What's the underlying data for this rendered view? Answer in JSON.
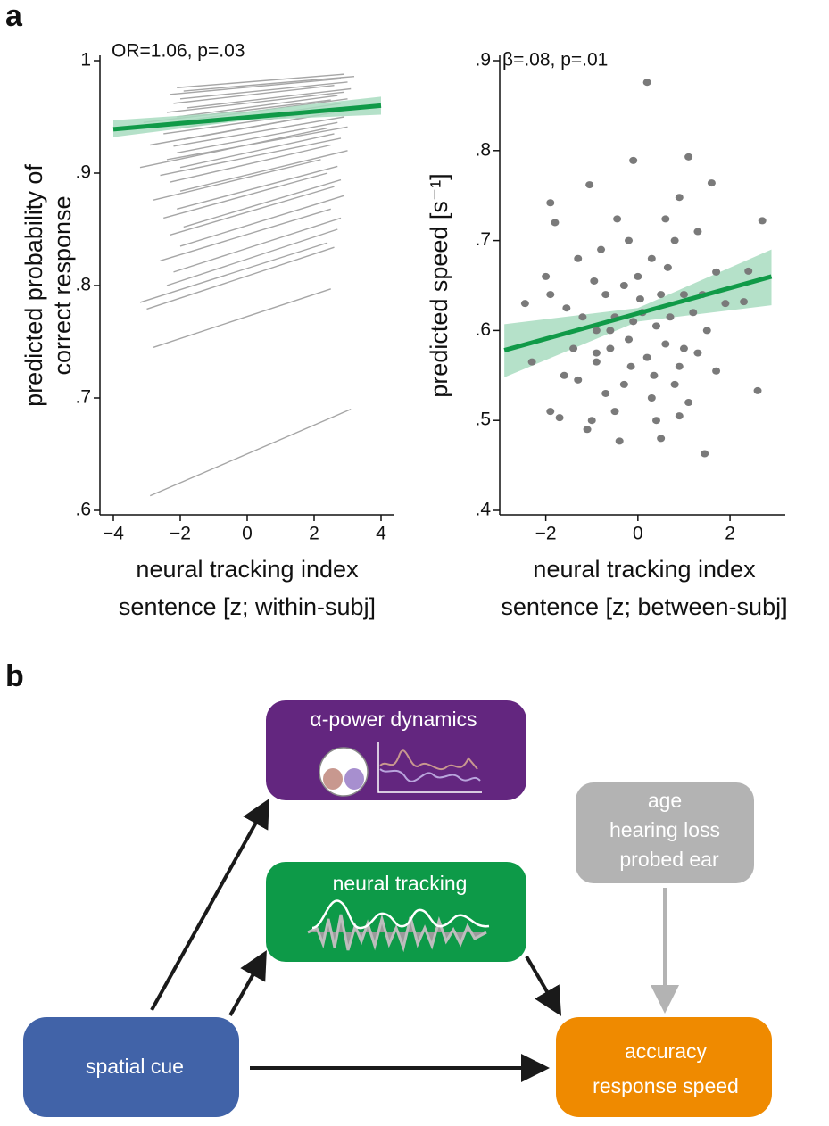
{
  "panel_labels": [
    "a",
    "b"
  ],
  "chart_data": [
    {
      "type": "line",
      "annotation": "OR=1.06, p=.03",
      "ylabel": [
        "predicted probability of",
        "correct response"
      ],
      "xlabel": [
        "neural tracking index",
        "sentence [z; within-subj]"
      ],
      "xlim": [
        -4.4,
        4.4
      ],
      "ylim": [
        0.6,
        1
      ],
      "xticks": [
        {
          "value": -4,
          "label": "−4"
        },
        {
          "value": -2,
          "label": "−2"
        },
        0,
        2,
        4
      ],
      "yticks": [
        {
          "value": 0.6,
          "label": ".6"
        },
        {
          "value": 0.7,
          "label": ".7"
        },
        {
          "value": 0.8,
          "label": ".8"
        },
        {
          "value": 0.9,
          "label": ".9"
        },
        1
      ],
      "series_color": "#a6a6a6",
      "series": [
        {
          "x": [
            -2.9,
            3.1
          ],
          "values": [
            0.613,
            0.69
          ]
        },
        {
          "x": [
            -2.8,
            2.5
          ],
          "values": [
            0.745,
            0.797
          ]
        },
        {
          "x": [
            -3.0,
            2.6
          ],
          "values": [
            0.779,
            0.834
          ]
        },
        {
          "x": [
            -3.2,
            2.4
          ],
          "values": [
            0.785,
            0.838
          ]
        },
        {
          "x": [
            -2.4,
            2.7
          ],
          "values": [
            0.8,
            0.85
          ]
        },
        {
          "x": [
            -2.2,
            2.8
          ],
          "values": [
            0.812,
            0.86
          ]
        },
        {
          "x": [
            -2.6,
            2.5
          ],
          "values": [
            0.822,
            0.868
          ]
        },
        {
          "x": [
            -2.0,
            2.9
          ],
          "values": [
            0.835,
            0.88
          ]
        },
        {
          "x": [
            -2.3,
            2.6
          ],
          "values": [
            0.845,
            0.888
          ]
        },
        {
          "x": [
            -1.9,
            2.8
          ],
          "values": [
            0.852,
            0.894
          ]
        },
        {
          "x": [
            -2.5,
            2.4
          ],
          "values": [
            0.86,
            0.9
          ]
        },
        {
          "x": [
            -2.1,
            2.7
          ],
          "values": [
            0.868,
            0.906
          ]
        },
        {
          "x": [
            -2.8,
            2.2
          ],
          "values": [
            0.876,
            0.912
          ]
        },
        {
          "x": [
            -2.0,
            3.0
          ],
          "values": [
            0.884,
            0.92
          ]
        },
        {
          "x": [
            -2.3,
            2.5
          ],
          "values": [
            0.892,
            0.925
          ]
        },
        {
          "x": [
            -2.6,
            2.8
          ],
          "values": [
            0.898,
            0.931
          ]
        },
        {
          "x": [
            -2.0,
            2.6
          ],
          "values": [
            0.905,
            0.935
          ]
        },
        {
          "x": [
            -2.4,
            3.0
          ],
          "values": [
            0.912,
            0.941
          ]
        },
        {
          "x": [
            -2.1,
            2.7
          ],
          "values": [
            0.918,
            0.945
          ]
        },
        {
          "x": [
            -2.2,
            2.9
          ],
          "values": [
            0.924,
            0.95
          ]
        },
        {
          "x": [
            -1.9,
            2.6
          ],
          "values": [
            0.93,
            0.954
          ]
        },
        {
          "x": [
            -2.5,
            3.1
          ],
          "values": [
            0.935,
            0.958
          ]
        },
        {
          "x": [
            -2.0,
            2.8
          ],
          "values": [
            0.94,
            0.962
          ]
        },
        {
          "x": [
            -2.3,
            3.0
          ],
          "values": [
            0.945,
            0.966
          ]
        },
        {
          "x": [
            -2.1,
            2.7
          ],
          "values": [
            0.95,
            0.969
          ]
        },
        {
          "x": [
            -2.4,
            2.9
          ],
          "values": [
            0.954,
            0.972
          ]
        },
        {
          "x": [
            -1.8,
            3.1
          ],
          "values": [
            0.958,
            0.975
          ]
        },
        {
          "x": [
            -2.2,
            2.6
          ],
          "values": [
            0.962,
            0.978
          ]
        },
        {
          "x": [
            -2.0,
            3.0
          ],
          "values": [
            0.966,
            0.981
          ]
        },
        {
          "x": [
            -2.3,
            2.8
          ],
          "values": [
            0.97,
            0.984
          ]
        },
        {
          "x": [
            -1.9,
            3.2
          ],
          "values": [
            0.973,
            0.986
          ]
        },
        {
          "x": [
            -2.1,
            2.9
          ],
          "values": [
            0.976,
            0.988
          ]
        },
        {
          "x": [
            -3.2,
            2.4
          ],
          "values": [
            0.905,
            0.94
          ]
        },
        {
          "x": [
            -2.9,
            2.2
          ],
          "values": [
            0.925,
            0.952
          ]
        },
        {
          "x": [
            -3.1,
            2.5
          ],
          "values": [
            0.945,
            0.965
          ]
        }
      ],
      "band": {
        "color": "#a8dcc0",
        "x": [
          -4,
          0,
          4
        ],
        "upper": [
          0.947,
          0.955,
          0.968
        ],
        "lower": [
          0.932,
          0.947,
          0.952
        ]
      },
      "fit": {
        "color": "#109a48",
        "x": [
          -4,
          4
        ],
        "values": [
          0.939,
          0.96
        ]
      }
    },
    {
      "type": "scatter",
      "annotation": "β=.08, p=.01",
      "ylabel": [
        "predicted speed [s⁻¹]"
      ],
      "xlabel": [
        "neural tracking index",
        "sentence [z; between-subj]"
      ],
      "xlim": [
        -3,
        3.2
      ],
      "ylim": [
        0.4,
        0.9
      ],
      "xticks": [
        {
          "value": -2,
          "label": "−2"
        },
        0,
        2
      ],
      "yticks": [
        {
          "value": 0.4,
          "label": ".4"
        },
        {
          "value": 0.5,
          "label": ".5"
        },
        {
          "value": 0.6,
          "label": ".6"
        },
        {
          "value": 0.7,
          "label": ".7"
        },
        {
          "value": 0.8,
          "label": ".8"
        },
        {
          "value": 0.9,
          "label": ".9"
        }
      ],
      "color": "#7a7a7a",
      "x": [
        0.2,
        1.1,
        -0.1,
        1.6,
        2.7,
        -1.9,
        -1.05,
        2.6,
        1.45,
        -0.4,
        -1.1,
        -1.9,
        -2.3,
        -1.7,
        2.4,
        2.3,
        -0.45,
        0.6,
        0.9,
        -1.8,
        -1.3,
        -1.55,
        -2.0,
        -1.9,
        -2.45,
        -0.8,
        -0.2,
        0.3,
        0.8,
        1.3,
        1.7,
        1.0,
        0.5,
        -0.3,
        -0.7,
        -1.2,
        -0.9,
        -0.5,
        0.1,
        0.4,
        0.7,
        1.2,
        1.5,
        1.9,
        -1.6,
        -1.3,
        -0.9,
        -0.6,
        -0.2,
        0.2,
        0.6,
        0.9,
        1.3,
        1.7,
        -0.7,
        -0.3,
        0.3,
        0.8,
        1.1,
        -1.0,
        -0.5,
        0.4,
        0.9,
        0.5,
        -0.9,
        0.0,
        -0.1,
        0.05,
        -0.6,
        1.4,
        -1.4,
        0.35,
        1.0,
        -0.15,
        0.65,
        -0.95
      ],
      "values": [
        0.876,
        0.793,
        0.789,
        0.764,
        0.722,
        0.742,
        0.762,
        0.533,
        0.463,
        0.477,
        0.49,
        0.51,
        0.565,
        0.503,
        0.666,
        0.632,
        0.724,
        0.724,
        0.748,
        0.72,
        0.68,
        0.625,
        0.66,
        0.64,
        0.63,
        0.69,
        0.7,
        0.68,
        0.7,
        0.71,
        0.665,
        0.64,
        0.64,
        0.65,
        0.64,
        0.615,
        0.6,
        0.615,
        0.62,
        0.605,
        0.615,
        0.62,
        0.6,
        0.63,
        0.55,
        0.545,
        0.565,
        0.58,
        0.59,
        0.57,
        0.585,
        0.56,
        0.575,
        0.555,
        0.53,
        0.54,
        0.525,
        0.54,
        0.52,
        0.5,
        0.51,
        0.5,
        0.505,
        0.48,
        0.575,
        0.66,
        0.61,
        0.635,
        0.6,
        0.64,
        0.58,
        0.55,
        0.58,
        0.56,
        0.67,
        0.655
      ],
      "band": {
        "color": "#a8dcc0",
        "x": [
          -2.9,
          0,
          2.9
        ],
        "upper": [
          0.607,
          0.625,
          0.69
        ],
        "lower": [
          0.548,
          0.61,
          0.628
        ]
      },
      "fit": {
        "color": "#109a48",
        "x": [
          -2.9,
          2.9
        ],
        "values": [
          0.578,
          0.66
        ]
      }
    }
  ],
  "diagram": {
    "nodes": [
      {
        "lines": [
          "α-power dynamics"
        ]
      },
      {
        "lines": [
          "neural tracking"
        ]
      },
      {
        "lines": [
          "age",
          "hearing loss",
          "probed ear"
        ]
      },
      {
        "lines": [
          "spatial cue"
        ]
      },
      {
        "lines": [
          "accuracy",
          "response speed"
        ]
      }
    ]
  }
}
